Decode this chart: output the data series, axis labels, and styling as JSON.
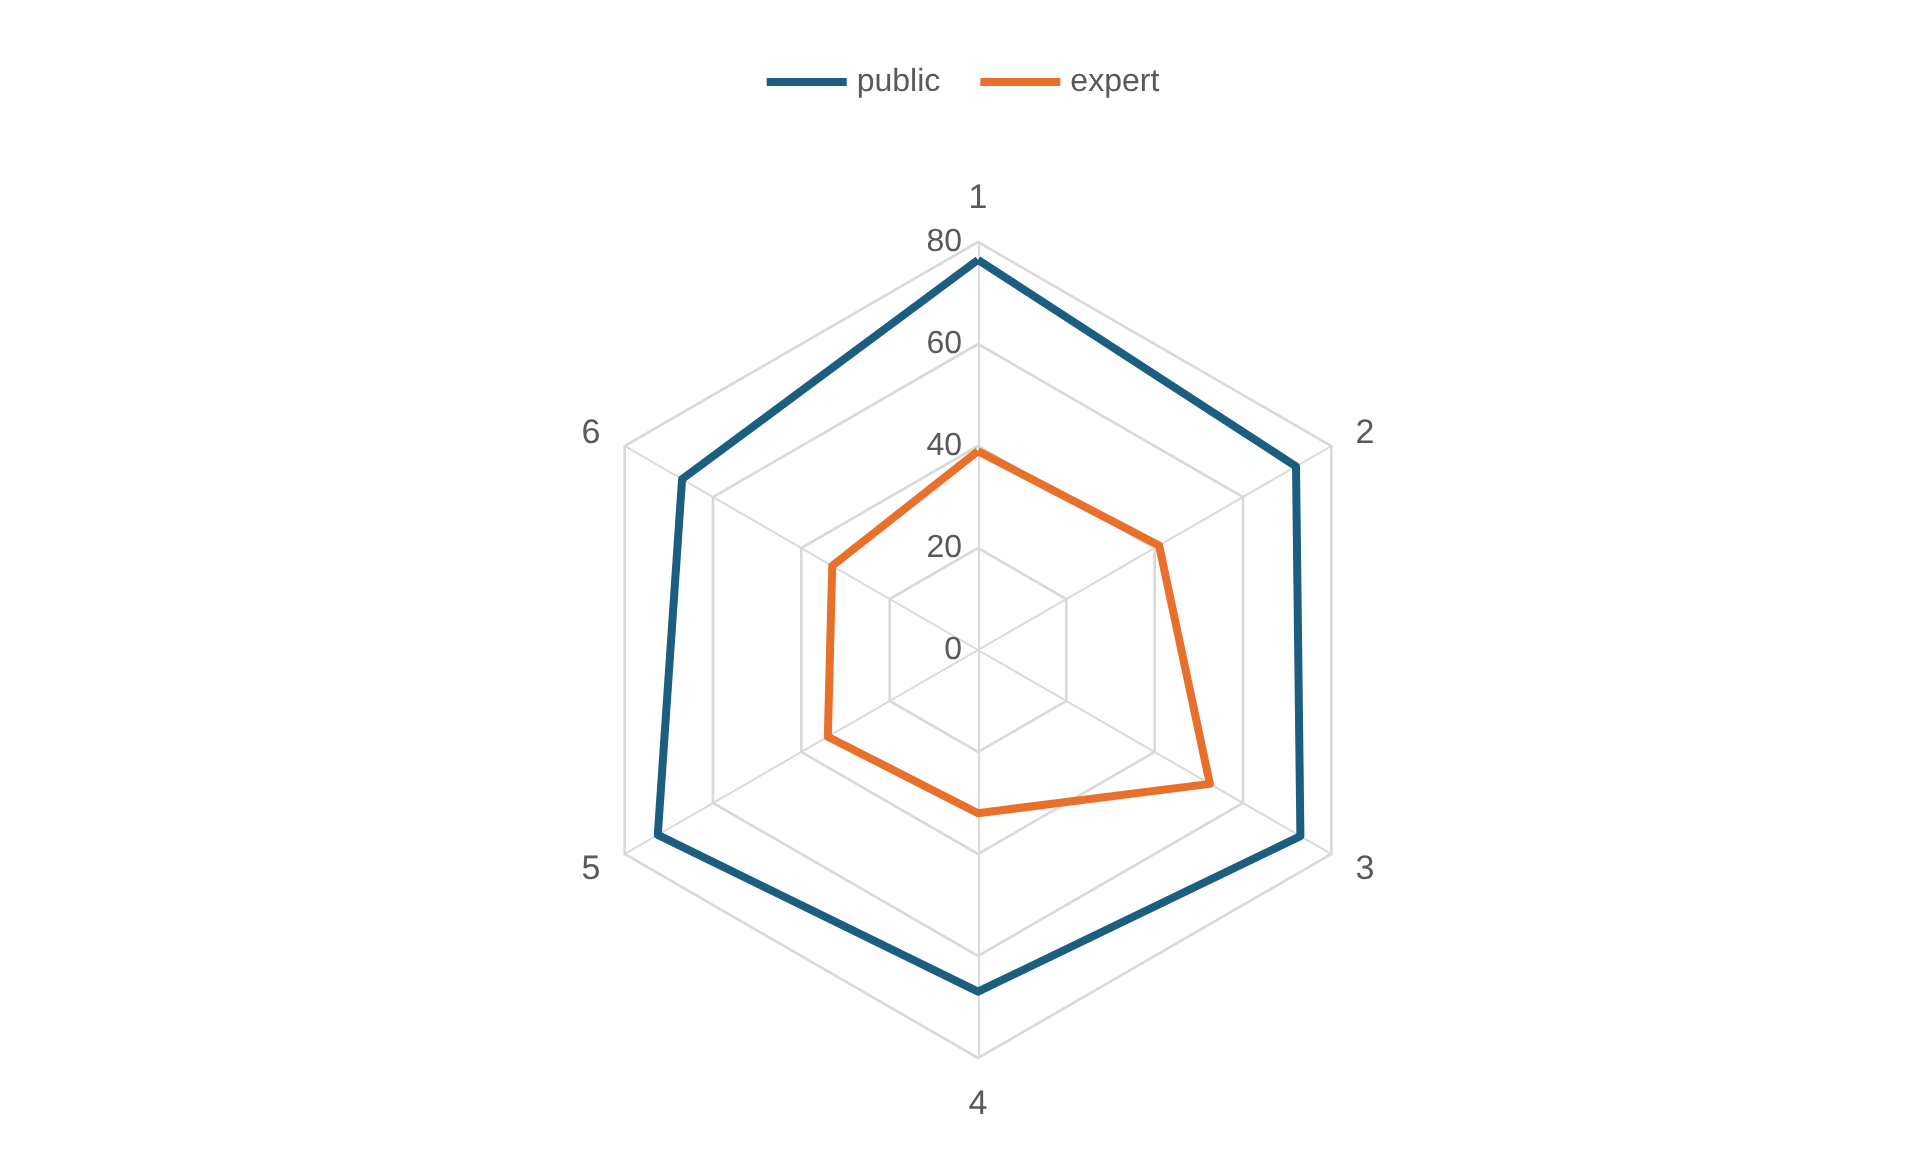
{
  "chart_data": {
    "type": "radar",
    "categories": [
      "1",
      "2",
      "3",
      "4",
      "5",
      "6"
    ],
    "series": [
      {
        "name": "public",
        "color": "#1b5e80",
        "values": [
          76.5,
          72,
          73,
          67,
          72.5,
          67
        ]
      },
      {
        "name": "expert",
        "color": "#e8702a",
        "values": [
          39,
          41,
          52.5,
          32,
          34,
          33
        ]
      }
    ],
    "ylim": [
      0,
      80
    ],
    "yticks": [
      0,
      20,
      40,
      60,
      80
    ],
    "legend": "top",
    "marker": "none",
    "line_style": "solid",
    "grid": true
  }
}
